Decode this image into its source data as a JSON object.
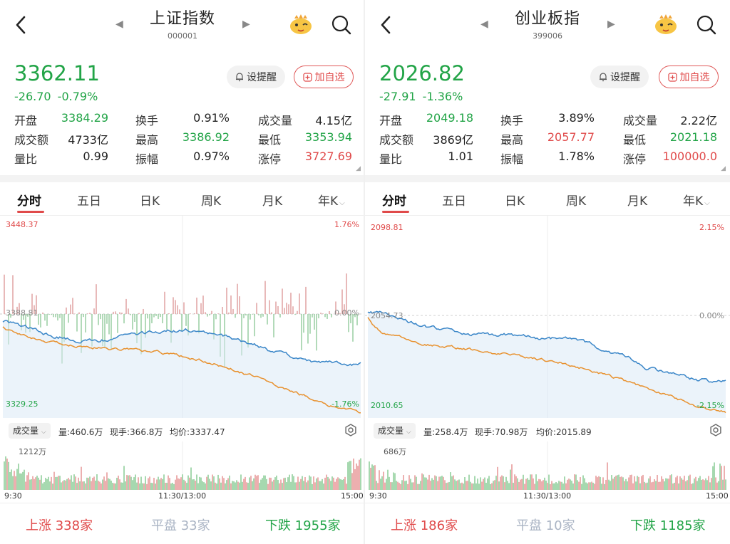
{
  "panels": [
    {
      "title": "上证指数",
      "code": "000001",
      "price": "3362.11",
      "change": "-26.70",
      "change_pct": "-0.79%",
      "alert_label": "设提醒",
      "fav_label": "加自选",
      "stats": [
        [
          {
            "label": "开盘",
            "value": "3384.29",
            "color": "g"
          },
          {
            "label": "换手",
            "value": "0.91%",
            "color": "k"
          },
          {
            "label": "成交量",
            "value": "4.15亿",
            "color": "k"
          }
        ],
        [
          {
            "label": "成交额",
            "value": "4733亿",
            "color": "k"
          },
          {
            "label": "最高",
            "value": "3386.92",
            "color": "g"
          },
          {
            "label": "最低",
            "value": "3353.94",
            "color": "g"
          }
        ],
        [
          {
            "label": "量比",
            "value": "0.99",
            "color": "k"
          },
          {
            "label": "振幅",
            "value": "0.97%",
            "color": "k"
          },
          {
            "label": "涨停",
            "value": "3727.69",
            "color": "r"
          }
        ]
      ],
      "tabs": [
        "分时",
        "五日",
        "日K",
        "周K",
        "月K",
        "年K"
      ],
      "chart": {
        "y_top": "3448.37",
        "y_mid": "3388.81",
        "y_bottom": "3329.25",
        "pct_top": "1.76%",
        "pct_mid": "0.00%",
        "pct_bottom": "-1.76%"
      },
      "volume_bar": {
        "selector": "成交量",
        "amount": "量:460.6万",
        "current": "现手:366.8万",
        "avg": "均价:3337.47",
        "max_label": "1212万"
      },
      "time_labels": [
        "9:30",
        "11:30/13:00",
        "15:00"
      ],
      "breadth": {
        "up_label": "上涨",
        "up_value": "338家",
        "flat_label": "平盘",
        "flat_value": "33家",
        "down_label": "下跌",
        "down_value": "1955家"
      }
    },
    {
      "title": "创业板指",
      "code": "399006",
      "price": "2026.82",
      "change": "-27.91",
      "change_pct": "-1.36%",
      "alert_label": "设提醒",
      "fav_label": "加自选",
      "stats": [
        [
          {
            "label": "开盘",
            "value": "2049.18",
            "color": "g"
          },
          {
            "label": "换手",
            "value": "3.89%",
            "color": "k"
          },
          {
            "label": "成交量",
            "value": "2.22亿",
            "color": "k"
          }
        ],
        [
          {
            "label": "成交额",
            "value": "3869亿",
            "color": "k"
          },
          {
            "label": "最高",
            "value": "2057.77",
            "color": "r"
          },
          {
            "label": "最低",
            "value": "2021.18",
            "color": "g"
          }
        ],
        [
          {
            "label": "量比",
            "value": "1.01",
            "color": "k"
          },
          {
            "label": "振幅",
            "value": "1.78%",
            "color": "k"
          },
          {
            "label": "涨停",
            "value": "100000.0",
            "color": "r"
          }
        ]
      ],
      "tabs": [
        "分时",
        "五日",
        "日K",
        "周K",
        "月K",
        "年K"
      ],
      "chart": {
        "y_top": "2098.81",
        "y_mid": "2054.73",
        "y_bottom": "2010.65",
        "pct_top": "2.15%",
        "pct_mid": "0.00%",
        "pct_bottom": "-2.15%"
      },
      "volume_bar": {
        "selector": "成交量",
        "amount": "量:258.4万",
        "current": "现手:70.98万",
        "avg": "均价:2015.89",
        "max_label": "686万"
      },
      "time_labels": [
        "9:30",
        "11:30/13:00",
        "15:00"
      ],
      "breadth": {
        "up_label": "上涨",
        "up_value": "186家",
        "flat_label": "平盘",
        "flat_value": "10家",
        "down_label": "下跌",
        "down_value": "1185家"
      }
    }
  ],
  "colors": {
    "up": "#e04a4a",
    "down": "#22a447",
    "price_line": "#3a86c8",
    "avg_line": "#e8912e",
    "flat": "#aab4c4"
  },
  "icons": [
    "back-icon",
    "prev-arrow-icon",
    "next-arrow-icon",
    "mascot-icon",
    "search-icon",
    "bell-icon",
    "plus-box-icon",
    "chevron-down-icon",
    "gear-icon"
  ]
}
